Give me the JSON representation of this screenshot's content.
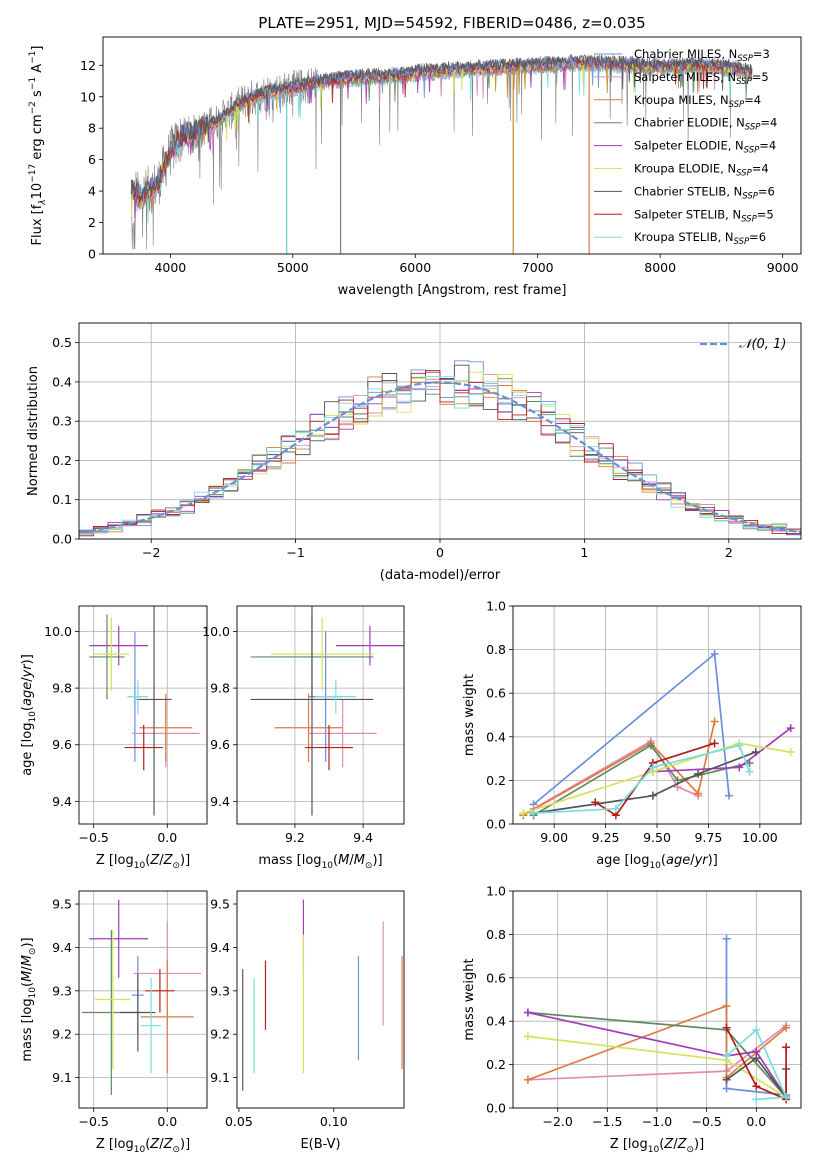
{
  "chart_data": [
    {
      "type": "line",
      "title": "PLATE=2951, MJD=54592, FIBERID=0486, z=0.035",
      "xlabel": "wavelength [Angstrom, rest frame]",
      "ylabel_parts": [
        "Flux [f",
        "λ",
        "10",
        "−17",
        " erg cm",
        "−2",
        " s",
        "−1",
        " A",
        "−1",
        "]"
      ],
      "xlim": [
        3450,
        9150
      ],
      "ylim": [
        0,
        13.8
      ],
      "xticks": [
        4000,
        5000,
        6000,
        7000,
        8000,
        9000
      ],
      "yticks": [
        0,
        2,
        4,
        6,
        8,
        10,
        12
      ],
      "grid": false,
      "legend_loc": "upper right",
      "legend": [
        {
          "name": "Chabrier MILES, N",
          "sub": "SSP",
          "tail": "=3",
          "color": "#6a8fdc"
        },
        {
          "name": "Salpeter MILES, N",
          "sub": "SSP",
          "tail": "=5",
          "color": "#e08cb8"
        },
        {
          "name": "Kroupa MILES, N",
          "sub": "SSP",
          "tail": "=4",
          "color": "#c88a2a"
        },
        {
          "name": "Chabrier ELODIE, N",
          "sub": "SSP",
          "tail": "=4",
          "color": "#5f8a62"
        },
        {
          "name": "Salpeter ELODIE, N",
          "sub": "SSP",
          "tail": "=4",
          "color": "#a03cb8"
        },
        {
          "name": "Kroupa ELODIE, N",
          "sub": "SSP",
          "tail": "=4",
          "color": "#d6e25a"
        },
        {
          "name": "Chabrier STELIB, N",
          "sub": "SSP",
          "tail": "=6",
          "color": "#555555"
        },
        {
          "name": "Salpeter STELIB, N",
          "sub": "SSP",
          "tail": "=5",
          "color": "#b41e1e"
        },
        {
          "name": "Kroupa STELIB, N",
          "sub": "SSP",
          "tail": "=6",
          "color": "#78dede"
        }
      ],
      "continuum": {
        "x": [
          3680,
          3750,
          3900,
          4000,
          4100,
          4200,
          4400,
          4600,
          4800,
          5000,
          5200,
          5500,
          5800,
          6000,
          6300,
          6600,
          7000,
          7300,
          7500,
          7800,
          8000,
          8300,
          8600,
          8750
        ],
        "y": [
          4.2,
          3.6,
          4.5,
          6.5,
          7.5,
          7.7,
          8.5,
          9.7,
          10.3,
          10.5,
          10.9,
          11.2,
          11.3,
          11.5,
          11.7,
          11.8,
          12.0,
          12.1,
          12.1,
          12.0,
          11.9,
          12.0,
          11.8,
          11.5
        ]
      },
      "data_color": "#808080",
      "dropouts": [
        {
          "x": 4950,
          "color": "#5ecfcf"
        },
        {
          "x": 5390,
          "color": "#808080"
        },
        {
          "x": 6800,
          "color": "#c88a2a"
        },
        {
          "x": 7420,
          "color": "#e07a40"
        }
      ]
    },
    {
      "type": "histogram",
      "xlabel": "(data-model)/error",
      "ylabel": "Normed distribution",
      "xlim": [
        -2.5,
        2.5
      ],
      "ylim": [
        0,
        0.55
      ],
      "xticks": [
        -2,
        -1,
        0,
        1,
        2
      ],
      "yticks": [
        0.0,
        0.1,
        0.2,
        0.3,
        0.4,
        0.5
      ],
      "grid": true,
      "bin_width": 0.1,
      "legend": [
        {
          "name": "𝒩(0, 1)",
          "color": "#6a8fdc",
          "style": "dashed"
        }
      ],
      "legend_loc": "upper right",
      "series_colors": [
        "#6a8fdc",
        "#e08cb8",
        "#e07a40",
        "#5f8a62",
        "#a03cb8",
        "#d6e25a",
        "#555555",
        "#b41e1e",
        "#78dede"
      ]
    },
    {
      "type": "errorbar",
      "xlabel": "Z [log10(Z/Z⊙)]",
      "ylabel": "age  [log10(age/yr)]",
      "xlim": [
        -0.6,
        0.27
      ],
      "ylim": [
        9.32,
        10.09
      ],
      "xticks": [
        -0.5,
        0.0
      ],
      "yticks": [
        9.4,
        9.6,
        9.8,
        10.0
      ],
      "grid": true,
      "points": [
        {
          "x": -0.22,
          "y": 9.77,
          "xerr": 0.05,
          "yerr": 0.23,
          "color": "#6a8fdc"
        },
        {
          "x": -0.01,
          "y": 9.64,
          "xerr": 0.23,
          "yerr": 0.12,
          "color": "#e08cb8"
        },
        {
          "x": -0.01,
          "y": 9.66,
          "xerr": 0.18,
          "yerr": 0.12,
          "color": "#e07a40"
        },
        {
          "x": -0.41,
          "y": 9.91,
          "xerr": 0.12,
          "yerr": 0.15,
          "color": "#5f8a62"
        },
        {
          "x": -0.33,
          "y": 9.95,
          "xerr": 0.2,
          "yerr": 0.07,
          "color": "#a03cb8"
        },
        {
          "x": -0.38,
          "y": 9.92,
          "xerr": 0.12,
          "yerr": 0.13,
          "color": "#d6e25a"
        },
        {
          "x": -0.09,
          "y": 9.76,
          "xerr": 0.12,
          "yerr": 0.41,
          "color": "#555555"
        },
        {
          "x": -0.16,
          "y": 9.59,
          "xerr": 0.13,
          "yerr": 0.08,
          "color": "#b41e1e"
        },
        {
          "x": -0.2,
          "y": 9.77,
          "xerr": 0.07,
          "yerr": 0.06,
          "color": "#78dede"
        }
      ]
    },
    {
      "type": "errorbar",
      "xlabel": "mass [log10(M/M⊙)]",
      "ylabel": "",
      "xlim": [
        9.03,
        9.52
      ],
      "ylim": [
        9.32,
        10.09
      ],
      "xticks": [
        9.2,
        9.4
      ],
      "yticks": [
        9.4,
        9.6,
        9.8,
        10.0
      ],
      "grid": true,
      "points": [
        {
          "x": 9.29,
          "y": 9.77,
          "xerr": 0.05,
          "yerr": 0.23,
          "color": "#6a8fdc"
        },
        {
          "x": 9.34,
          "y": 9.64,
          "xerr": 0.1,
          "yerr": 0.12,
          "color": "#e08cb8"
        },
        {
          "x": 9.24,
          "y": 9.66,
          "xerr": 0.1,
          "yerr": 0.12,
          "color": "#e07a40"
        },
        {
          "x": 9.25,
          "y": 9.91,
          "xerr": 0.18,
          "yerr": 0.15,
          "color": "#5f8a62"
        },
        {
          "x": 9.42,
          "y": 9.95,
          "xerr": 0.1,
          "yerr": 0.07,
          "color": "#a03cb8"
        },
        {
          "x": 9.28,
          "y": 9.92,
          "xerr": 0.15,
          "yerr": 0.13,
          "color": "#d6e25a"
        },
        {
          "x": 9.25,
          "y": 9.76,
          "xerr": 0.18,
          "yerr": 0.41,
          "color": "#555555"
        },
        {
          "x": 9.3,
          "y": 9.59,
          "xerr": 0.07,
          "yerr": 0.08,
          "color": "#b41e1e"
        },
        {
          "x": 9.32,
          "y": 9.77,
          "xerr": 0.06,
          "yerr": 0.06,
          "color": "#78dede"
        }
      ]
    },
    {
      "type": "line",
      "xlabel": "age  [log10(age/yr)]",
      "ylabel": "mass weight",
      "xlim": [
        8.8,
        10.2
      ],
      "ylim": [
        0,
        1
      ],
      "xticks": [
        9.0,
        9.25,
        9.5,
        9.75,
        10.0
      ],
      "xtick_labels": [
        "9.00",
        "9.25",
        "9.50",
        "9.75",
        "10.00"
      ],
      "yticks": [
        0,
        0.2,
        0.4,
        0.6,
        0.8,
        1.0
      ],
      "grid": true,
      "marker": "+",
      "series": [
        {
          "color": "#6a8fdc",
          "x": [
            8.9,
            9.78,
            9.85
          ],
          "y": [
            0.09,
            0.78,
            0.13
          ]
        },
        {
          "color": "#e08cb8",
          "x": [
            8.9,
            9.47,
            9.6,
            9.7
          ],
          "y": [
            0.07,
            0.38,
            0.17,
            0.13
          ]
        },
        {
          "color": "#e07a40",
          "x": [
            8.85,
            9.47,
            9.7,
            9.78
          ],
          "y": [
            0.04,
            0.37,
            0.14,
            0.47
          ]
        },
        {
          "color": "#5f8a62",
          "x": [
            8.9,
            9.47,
            9.6,
            9.95
          ],
          "y": [
            0.04,
            0.36,
            0.2,
            0.28
          ]
        },
        {
          "color": "#a03cb8",
          "x": [
            9.48,
            9.9,
            10.15
          ],
          "y": [
            0.24,
            0.26,
            0.44
          ]
        },
        {
          "color": "#d6e25a",
          "x": [
            8.85,
            9.48,
            9.9,
            10.15
          ],
          "y": [
            0.05,
            0.24,
            0.37,
            0.33
          ]
        },
        {
          "color": "#555555",
          "x": [
            8.9,
            9.48,
            9.7,
            9.98
          ],
          "y": [
            0.05,
            0.13,
            0.23,
            0.33
          ]
        },
        {
          "color": "#b41e1e",
          "x": [
            9.2,
            9.3,
            9.48,
            9.78
          ],
          "y": [
            0.1,
            0.04,
            0.28,
            0.37
          ]
        },
        {
          "color": "#78dede",
          "x": [
            8.9,
            9.3,
            9.48,
            9.9,
            9.95
          ],
          "y": [
            0.05,
            0.07,
            0.26,
            0.36,
            0.24
          ]
        }
      ]
    },
    {
      "type": "errorbar",
      "xlabel": "Z [log10(Z/Z⊙)]",
      "ylabel": "mass [log10(M/M⊙)]",
      "xlim": [
        -0.6,
        0.27
      ],
      "ylim": [
        9.03,
        9.53
      ],
      "xticks": [
        -0.5,
        0.0
      ],
      "yticks": [
        9.1,
        9.2,
        9.3,
        9.4,
        9.5
      ],
      "grid": true,
      "points": [
        {
          "x": -0.2,
          "y": 9.29,
          "xerr": 0.04,
          "yerr": 0.09,
          "color": "#6a8fdc"
        },
        {
          "x": 0.0,
          "y": 9.34,
          "xerr": 0.23,
          "yerr": 0.12,
          "color": "#e08cb8"
        },
        {
          "x": 0.0,
          "y": 9.24,
          "xerr": 0.18,
          "yerr": 0.13,
          "color": "#e07a40"
        },
        {
          "x": -0.38,
          "y": 9.25,
          "xerr": 0.2,
          "yerr": 0.19,
          "color": "#5f8a62"
        },
        {
          "x": -0.33,
          "y": 9.42,
          "xerr": 0.2,
          "yerr": 0.09,
          "color": "#a03cb8"
        },
        {
          "x": -0.37,
          "y": 9.28,
          "xerr": 0.12,
          "yerr": 0.16,
          "color": "#d6e25a"
        },
        {
          "x": -0.2,
          "y": 9.25,
          "xerr": 0.12,
          "yerr": 0.09,
          "color": "#555555"
        },
        {
          "x": -0.05,
          "y": 9.3,
          "xerr": 0.1,
          "yerr": 0.05,
          "color": "#b41e1e"
        },
        {
          "x": -0.11,
          "y": 9.22,
          "xerr": 0.07,
          "yerr": 0.11,
          "color": "#78dede"
        }
      ]
    },
    {
      "type": "errorbar",
      "xlabel": "E(B-V)",
      "ylabel": "",
      "xlim": [
        0.049,
        0.137
      ],
      "ylim": [
        9.03,
        9.53
      ],
      "xticks": [
        0.05,
        0.1
      ],
      "yticks": [
        9.1,
        9.2,
        9.3,
        9.4,
        9.5
      ],
      "grid": false,
      "points": [
        {
          "x": 0.113,
          "y": 9.26,
          "yerr": 0.12,
          "color": "#6a8fdc"
        },
        {
          "x": 0.126,
          "y": 9.34,
          "yerr": 0.12,
          "color": "#e08cb8"
        },
        {
          "x": 0.136,
          "y": 9.25,
          "yerr": 0.13,
          "color": "#e07a40"
        },
        {
          "x": 0.084,
          "y": 9.43,
          "yerr": 0.08,
          "color": "#a03cb8"
        },
        {
          "x": 0.084,
          "y": 9.27,
          "yerr": 0.16,
          "color": "#d6e25a"
        },
        {
          "x": 0.052,
          "y": 9.21,
          "yerr": 0.14,
          "color": "#555555"
        },
        {
          "x": 0.064,
          "y": 9.29,
          "yerr": 0.08,
          "color": "#b41e1e"
        },
        {
          "x": 0.058,
          "y": 9.22,
          "yerr": 0.11,
          "color": "#78dede"
        }
      ]
    },
    {
      "type": "line",
      "xlabel": "Z [log10(Z/Z⊙)]",
      "ylabel": "mass weight",
      "xlim": [
        -2.45,
        0.45
      ],
      "ylim": [
        0,
        1
      ],
      "xticks": [
        -2.0,
        -1.5,
        -1.0,
        -0.5,
        0.0
      ],
      "xtick_labels": [
        "−2.0",
        "−1.5",
        "−1.0",
        "−0.5",
        "0.0"
      ],
      "yticks": [
        0,
        0.2,
        0.4,
        0.6,
        0.8,
        1.0
      ],
      "grid": true,
      "marker": "+",
      "series": [
        {
          "color": "#6a8fdc",
          "x": [
            -0.3,
            -0.3,
            -0.3,
            0.3
          ],
          "y": [
            0.13,
            0.78,
            0.09,
            0.06
          ]
        },
        {
          "color": "#e08cb8",
          "x": [
            -2.3,
            -0.3,
            0.3
          ],
          "y": [
            0.13,
            0.17,
            0.38
          ]
        },
        {
          "color": "#e07a40",
          "x": [
            -2.3,
            -0.3,
            -0.3,
            0.3
          ],
          "y": [
            0.13,
            0.47,
            0.14,
            0.37
          ]
        },
        {
          "color": "#5f8a62",
          "x": [
            -2.3,
            -0.3,
            0.3
          ],
          "y": [
            0.44,
            0.36,
            0.05
          ]
        },
        {
          "color": "#a03cb8",
          "x": [
            -2.3,
            -0.3,
            0.0,
            0.3
          ],
          "y": [
            0.44,
            0.24,
            0.26,
            0.05
          ]
        },
        {
          "color": "#d6e25a",
          "x": [
            -2.3,
            -0.3,
            0.3
          ],
          "y": [
            0.33,
            0.22,
            0.05
          ]
        },
        {
          "color": "#555555",
          "x": [
            -0.3,
            0.0,
            0.3,
            0.3
          ],
          "y": [
            0.13,
            0.23,
            0.05,
            0.18
          ]
        },
        {
          "color": "#b41e1e",
          "x": [
            -0.3,
            0.0,
            0.3,
            0.3
          ],
          "y": [
            0.37,
            0.1,
            0.04,
            0.28
          ]
        },
        {
          "color": "#78dede",
          "x": [
            -0.3,
            0.0,
            0.3,
            0.0
          ],
          "y": [
            0.24,
            0.36,
            0.05,
            0.04
          ]
        }
      ]
    }
  ]
}
